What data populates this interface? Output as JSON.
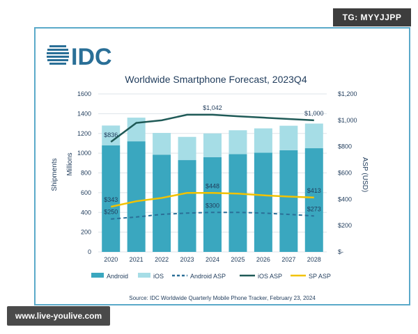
{
  "watermark_top": "TG: MYYJJPP",
  "watermark_bottom": "www.live-youlive.com",
  "logo_text": "IDC",
  "colors": {
    "android": "#3aa7bf",
    "ios": "#a6dde6",
    "android_asp": "#2a6f97",
    "ios_asp": "#1f5a57",
    "sp_asp": "#f2c200",
    "text_navy": "#1f3b5b",
    "logo": "#2a6f97"
  },
  "chart_data": {
    "type": "bar",
    "title": "Worldwide Smartphone Forecast, 2023Q4",
    "ylabel_left": "Shipments",
    "ylabel_left_unit": "Millions",
    "ylabel_right": "ASP (USD)",
    "categories": [
      "2020",
      "2021",
      "2022",
      "2023",
      "2024",
      "2025",
      "2026",
      "2027",
      "2028"
    ],
    "ylim_left": [
      0,
      1600
    ],
    "ylim_right": [
      0,
      1200
    ],
    "y_ticks_left": [
      "0",
      "200",
      "400",
      "600",
      "800",
      "1000",
      "1200",
      "1400",
      "1600"
    ],
    "y_ticks_right": [
      "$-",
      "$200",
      "$400",
      "$600",
      "$800",
      "$1,000",
      "$1,200"
    ],
    "series": [
      {
        "name": "Android",
        "kind": "bar",
        "axis": "left",
        "stack": "shipments",
        "values": [
          1080,
          1120,
          985,
          930,
          960,
          990,
          1005,
          1030,
          1050
        ]
      },
      {
        "name": "iOS",
        "kind": "bar",
        "axis": "left",
        "stack": "shipments",
        "values": [
          200,
          240,
          220,
          235,
          240,
          242,
          246,
          248,
          250
        ]
      },
      {
        "name": "Android ASP",
        "kind": "line",
        "style": "dashed",
        "axis": "right",
        "values": [
          250,
          265,
          285,
          295,
          300,
          300,
          295,
          285,
          273
        ]
      },
      {
        "name": "iOS ASP",
        "kind": "line",
        "style": "solid",
        "axis": "right",
        "values": [
          836,
          980,
          1000,
          1042,
          1042,
          1030,
          1020,
          1010,
          1000
        ]
      },
      {
        "name": "SP ASP",
        "kind": "line",
        "style": "solid",
        "axis": "right",
        "values": [
          343,
          385,
          410,
          448,
          448,
          443,
          430,
          420,
          413
        ]
      }
    ],
    "data_labels": [
      {
        "series": "iOS ASP",
        "index": 0,
        "text": "$836"
      },
      {
        "series": "iOS ASP",
        "index": 4,
        "text": "$1,042"
      },
      {
        "series": "iOS ASP",
        "index": 8,
        "text": "$1,000"
      },
      {
        "series": "SP ASP",
        "index": 0,
        "text": "$343"
      },
      {
        "series": "SP ASP",
        "index": 4,
        "text": "$448"
      },
      {
        "series": "SP ASP",
        "index": 8,
        "text": "$413"
      },
      {
        "series": "Android ASP",
        "index": 0,
        "text": "$250"
      },
      {
        "series": "Android ASP",
        "index": 4,
        "text": "$300"
      },
      {
        "series": "Android ASP",
        "index": 8,
        "text": "$273"
      }
    ],
    "legend": [
      "Android",
      "iOS",
      "Android ASP",
      "iOS ASP",
      "SP ASP"
    ],
    "legend_position": "bottom",
    "grid": true,
    "source": "Source:  IDC Worldwide Quarterly Mobile Phone Tracker, February 23, 2024"
  }
}
